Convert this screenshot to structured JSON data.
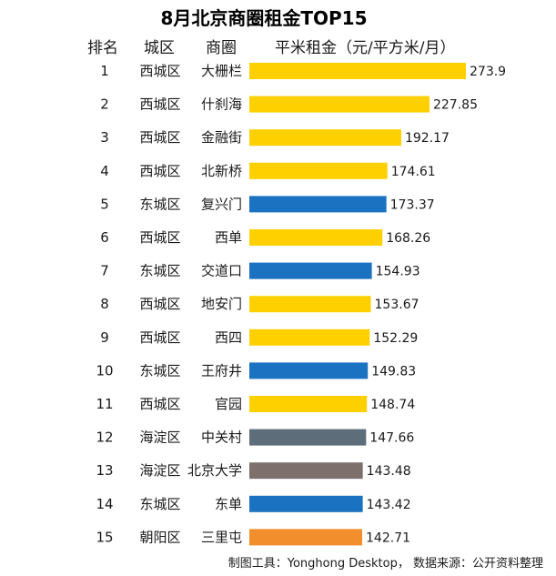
{
  "title": "8月北京商圈租金TOP15",
  "columns": {
    "rank": "排名",
    "district": "城区",
    "area": "商圈",
    "metric": "平米租金（元/平方米/月）"
  },
  "colors": {
    "西城区": "#FFD000",
    "东城区": "#1B72C0",
    "海淀区_中关村": "#5D6E7A",
    "海淀区_北京大学": "#7D706C",
    "朝阳区": "#F28E2B"
  },
  "chart_data": {
    "type": "bar",
    "orientation": "horizontal",
    "title": "8月北京商圈租金TOP15",
    "xlabel": "平米租金（元/平方米/月）",
    "rows": [
      {
        "rank": "1",
        "district": "西城区",
        "area": "大栅栏",
        "value": 273.9,
        "color": "#FFD000"
      },
      {
        "rank": "2",
        "district": "西城区",
        "area": "什刹海",
        "value": 227.85,
        "color": "#FFD000"
      },
      {
        "rank": "3",
        "district": "西城区",
        "area": "金融街",
        "value": 192.17,
        "color": "#FFD000"
      },
      {
        "rank": "4",
        "district": "西城区",
        "area": "北新桥",
        "value": 174.61,
        "color": "#FFD000"
      },
      {
        "rank": "5",
        "district": "东城区",
        "area": "复兴门",
        "value": 173.37,
        "color": "#1B72C0"
      },
      {
        "rank": "6",
        "district": "西城区",
        "area": "西单",
        "value": 168.26,
        "color": "#FFD000"
      },
      {
        "rank": "7",
        "district": "东城区",
        "area": "交道口",
        "value": 154.93,
        "color": "#1B72C0"
      },
      {
        "rank": "8",
        "district": "西城区",
        "area": "地安门",
        "value": 153.67,
        "color": "#FFD000"
      },
      {
        "rank": "9",
        "district": "西城区",
        "area": "西四",
        "value": 152.29,
        "color": "#FFD000"
      },
      {
        "rank": "10",
        "district": "东城区",
        "area": "王府井",
        "value": 149.83,
        "color": "#1B72C0"
      },
      {
        "rank": "11",
        "district": "西城区",
        "area": "官园",
        "value": 148.74,
        "color": "#FFD000"
      },
      {
        "rank": "12",
        "district": "海淀区",
        "area": "中关村",
        "value": 147.66,
        "color": "#5D6E7A"
      },
      {
        "rank": "13",
        "district": "海淀区",
        "area": "北京大学",
        "value": 143.48,
        "color": "#7D706C"
      },
      {
        "rank": "14",
        "district": "东城区",
        "area": "东单",
        "value": 143.42,
        "color": "#1B72C0"
      },
      {
        "rank": "15",
        "district": "朝阳区",
        "area": "三里屯",
        "value": 142.71,
        "color": "#F28E2B"
      }
    ],
    "grid": false
  },
  "footer": "制图工具：Yonghong Desktop， 数据来源：公开资料整理"
}
